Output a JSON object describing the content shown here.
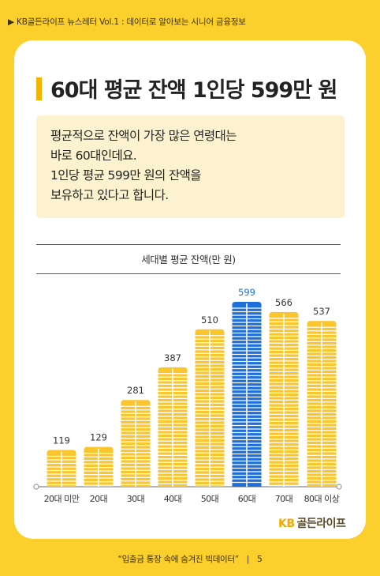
{
  "header": {
    "label": "▶ KB골든라이프 뉴스레터 Vol.1 : 데이터로 알아보는 시니어 금융정보"
  },
  "title": "60대 평균 잔액 1인당 599만 원",
  "note_lines": [
    "평균적으로 잔액이 가장 많은 연령대는",
    "바로 60대인데요.",
    "1인당 평균 599만 원의 잔액을",
    "보유하고 있다고 합니다."
  ],
  "colors": {
    "bar": "#fbc52e",
    "bar_stripe": "#ffffff",
    "highlight": "#1e6fd9",
    "brand": "#f5a800"
  },
  "chart_data": {
    "type": "bar",
    "title": "세대별 평균 잔액(만 원)",
    "categories": [
      "20대 미만",
      "20대",
      "30대",
      "40대",
      "50대",
      "60대",
      "70대",
      "80대 이상"
    ],
    "values": [
      119,
      129,
      281,
      387,
      510,
      599,
      566,
      537
    ],
    "highlight_index": 5,
    "ylim": [
      0,
      620
    ],
    "grid": false,
    "legend": "none"
  },
  "brand": {
    "kb": "KB",
    "name": "골든라이프"
  },
  "footer": {
    "text": "“입출금 통장 속에 숨겨진 빅데이터”",
    "sep": "|",
    "page": "5"
  }
}
